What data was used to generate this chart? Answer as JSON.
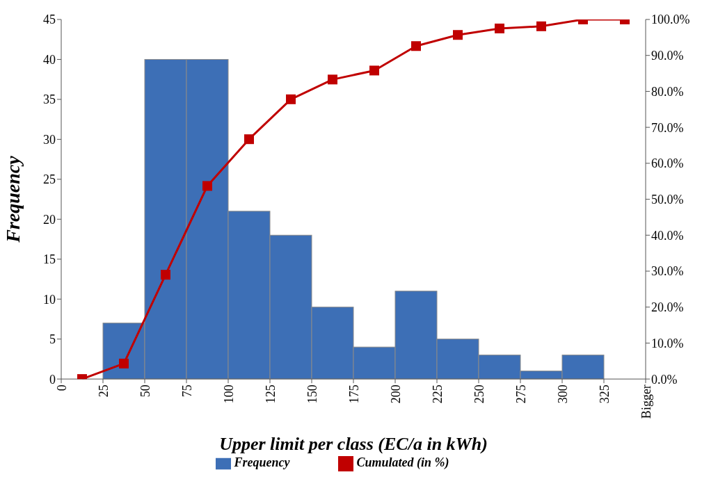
{
  "chart_data": {
    "type": "histogram",
    "xlabel": "Upper limit per class (EC/a in kWh)",
    "ylabel": "Frequency",
    "bins": [
      25,
      50,
      75,
      100,
      125,
      150,
      175,
      200,
      225,
      250,
      275,
      300,
      325
    ],
    "series": [
      {
        "name": "Frequency",
        "color": "#3d6fb6",
        "values": [
          7,
          40,
          40,
          21,
          18,
          9,
          4,
          11,
          5,
          3,
          1,
          3
        ]
      },
      {
        "name": "Cumulated (in %)",
        "type": "line",
        "axis": "y2",
        "color": "#c00000",
        "marker": "square",
        "x": [
          12.5,
          37.5,
          62.5,
          87.5,
          112.5,
          137.5,
          162.5,
          187.5,
          212.5,
          237.5,
          262.5,
          287.5,
          312.5,
          337.5
        ],
        "values": [
          0,
          4.3,
          29.0,
          53.7,
          66.7,
          77.8,
          83.3,
          85.8,
          92.6,
          95.7,
          97.5,
          98.1,
          100,
          100
        ]
      }
    ],
    "xlim": [
      0,
      350
    ],
    "xticks": [
      0,
      25,
      50,
      75,
      100,
      125,
      150,
      175,
      200,
      225,
      250,
      275,
      300,
      325,
      {
        "value": 350,
        "label": "Bigger"
      }
    ],
    "ylim": [
      0,
      45
    ],
    "yticks": [
      0,
      5,
      10,
      15,
      20,
      25,
      30,
      35,
      40,
      45
    ],
    "y2lim": [
      0,
      100
    ],
    "y2ticks": [
      {
        "value": 0,
        "label": "0.0%"
      },
      {
        "value": 10,
        "label": "10.0%"
      },
      {
        "value": 20,
        "label": "20.0%"
      },
      {
        "value": 30,
        "label": "30.0%"
      },
      {
        "value": 40,
        "label": "40.0%"
      },
      {
        "value": 50,
        "label": "50.0%"
      },
      {
        "value": 60,
        "label": "60.0%"
      },
      {
        "value": 70,
        "label": "70.0%"
      },
      {
        "value": 80,
        "label": "80.0%"
      },
      {
        "value": 90,
        "label": "90.0%"
      },
      {
        "value": 100,
        "label": "100.0%"
      }
    ],
    "grid": false,
    "legend": "bottom"
  }
}
